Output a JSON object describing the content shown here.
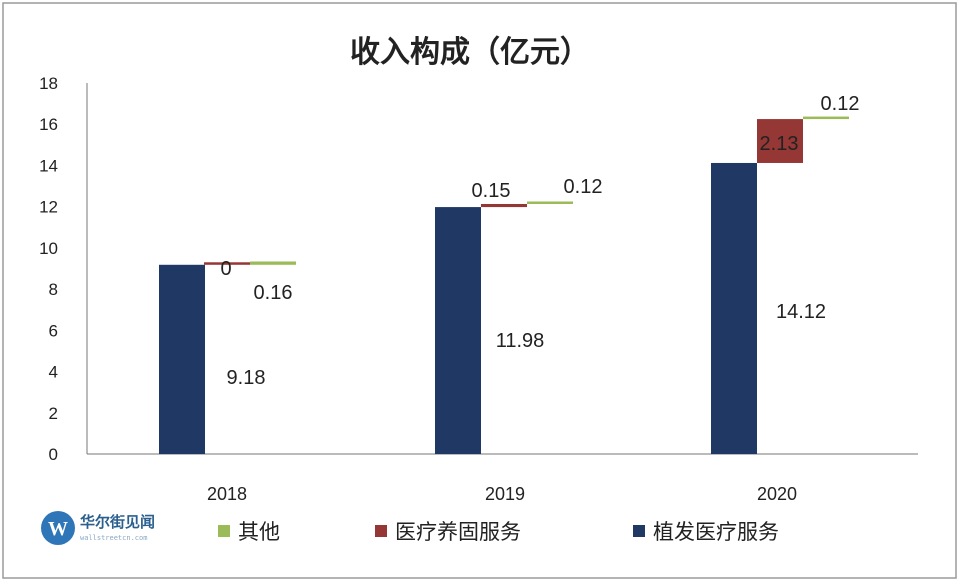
{
  "chart_data": {
    "type": "bar",
    "stacked": "waterfall",
    "title": "收入构成（亿元）",
    "categories": [
      "2018",
      "2019",
      "2020"
    ],
    "ylim": [
      0,
      18
    ],
    "yticks": [
      "0",
      "2",
      "4",
      "6",
      "8",
      "10",
      "12",
      "14",
      "16",
      "18"
    ],
    "grid": false,
    "legend_position": "bottom",
    "series": [
      {
        "name": "其他",
        "color": "#9bbb59",
        "values": [
          0.16,
          0.12,
          0.12
        ],
        "labels": [
          "0.16",
          "0.12",
          "0.12"
        ]
      },
      {
        "name": "医疗养固服务",
        "color": "#953735",
        "values": [
          0,
          0.15,
          2.13
        ],
        "labels": [
          "0",
          "0.15",
          "2.13"
        ]
      },
      {
        "name": "植发医疗服务",
        "color": "#1f3864",
        "values": [
          9.18,
          11.98,
          14.12
        ],
        "labels": [
          "9.18",
          "11.98",
          "14.12"
        ]
      }
    ]
  },
  "watermark": {
    "logo_letter": "W",
    "name": "华尔街见闻",
    "sub": "wallstreetcn.com"
  }
}
